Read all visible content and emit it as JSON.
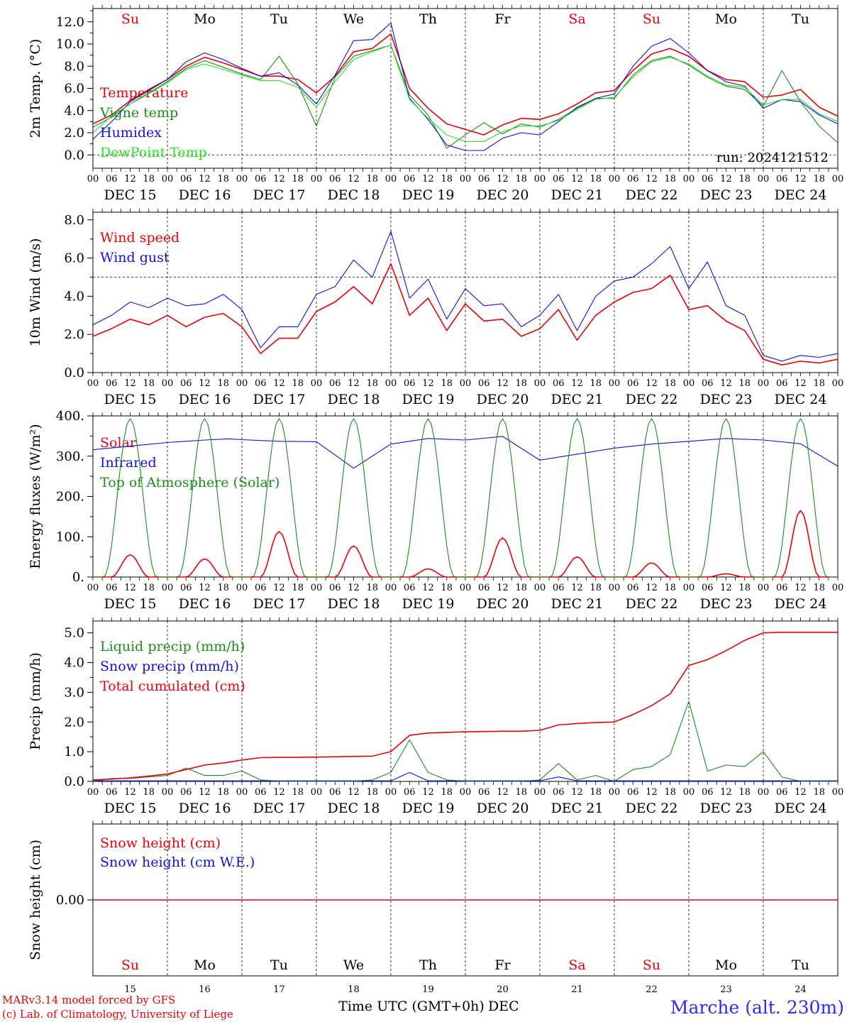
{
  "chart_data": [
    {
      "type": "line",
      "ylabel": "2m Temp. (°C)",
      "ylim": [
        -1.2,
        13.2
      ],
      "yticks": [
        0,
        2,
        4,
        6,
        8,
        10,
        12
      ],
      "ytick_labels": [
        "0.0",
        "2.0",
        "4.0",
        "6.0",
        "8.0",
        "10.0",
        "12.0"
      ],
      "reference_line": 0,
      "day_names": [
        "Su",
        "Mo",
        "Tu",
        "We",
        "Th",
        "Fr",
        "Sa",
        "Su",
        "Mo",
        "Tu"
      ],
      "run_label": "run: 2024121512",
      "x_hours": [
        0,
        6,
        12,
        18,
        24,
        30,
        36,
        42,
        48,
        54,
        60,
        66,
        72,
        78,
        84,
        90,
        96,
        102,
        108,
        114,
        120,
        126,
        132,
        138,
        144,
        150,
        156,
        162,
        168,
        174,
        180,
        186,
        192,
        198,
        204,
        210,
        216,
        222,
        228,
        234,
        240
      ],
      "series": [
        {
          "name": "Temperature",
          "color": "#e8000a",
          "values": [
            2.8,
            3.6,
            4.9,
            5.9,
            6.8,
            8.0,
            8.8,
            8.3,
            7.7,
            7.1,
            7.1,
            6.8,
            5.6,
            7.1,
            9.3,
            9.6,
            10.9,
            6.0,
            4.2,
            2.8,
            2.3,
            1.8,
            2.7,
            3.3,
            3.2,
            3.7,
            4.6,
            5.6,
            5.8,
            7.6,
            9.1,
            9.6,
            8.9,
            7.6,
            6.8,
            6.6,
            5.2,
            5.4,
            5.9,
            4.3,
            3.5
          ]
        },
        {
          "name": "Vigne temp",
          "color": "#1a8c1a",
          "values": [
            2.5,
            3.4,
            4.6,
            5.6,
            6.6,
            7.8,
            8.5,
            7.9,
            7.3,
            6.8,
            8.9,
            6.4,
            2.6,
            7.0,
            8.9,
            9.4,
            9.9,
            5.4,
            3.6,
            0.6,
            1.8,
            2.9,
            1.9,
            2.8,
            2.5,
            3.2,
            4.2,
            5.1,
            5.1,
            7.2,
            8.5,
            8.9,
            8.1,
            7.0,
            6.2,
            5.9,
            4.4,
            7.6,
            4.8,
            2.6,
            1.1
          ]
        },
        {
          "name": "Humidex",
          "color": "#1010e0",
          "values": [
            1.4,
            3.0,
            4.8,
            5.8,
            6.8,
            8.4,
            9.2,
            8.6,
            7.8,
            7.1,
            7.4,
            6.3,
            4.6,
            7.2,
            10.3,
            10.4,
            11.9,
            5.1,
            3.2,
            0.9,
            0.4,
            0.4,
            1.5,
            2.0,
            1.8,
            3.0,
            4.3,
            5.1,
            5.5,
            8.0,
            9.8,
            10.5,
            9.2,
            7.6,
            6.6,
            6.2,
            4.2,
            5.0,
            4.8,
            3.6,
            2.8
          ]
        },
        {
          "name": "DewPoint Temp",
          "color": "#22e422",
          "values": [
            2.0,
            3.5,
            4.6,
            5.5,
            6.5,
            7.7,
            8.2,
            7.7,
            7.2,
            6.7,
            6.7,
            6.1,
            4.3,
            6.6,
            8.6,
            9.3,
            9.9,
            5.0,
            3.3,
            1.8,
            1.2,
            1.2,
            2.1,
            2.6,
            2.6,
            3.1,
            4.1,
            5.0,
            5.2,
            7.0,
            8.4,
            8.8,
            8.2,
            7.1,
            6.3,
            6.1,
            4.5,
            5.0,
            5.0,
            3.7,
            3.0
          ]
        }
      ]
    },
    {
      "type": "line",
      "ylabel": "10m Wind (m/s)",
      "ylim": [
        0,
        8.4
      ],
      "yticks": [
        0,
        2,
        4,
        6,
        8
      ],
      "ytick_labels": [
        "0.0",
        "2.0",
        "4.0",
        "6.0",
        "8.0"
      ],
      "reference_line": 5,
      "x_hours": [
        0,
        6,
        12,
        18,
        24,
        30,
        36,
        42,
        48,
        54,
        60,
        66,
        72,
        78,
        84,
        90,
        96,
        102,
        108,
        114,
        120,
        126,
        132,
        138,
        144,
        150,
        156,
        162,
        168,
        174,
        180,
        186,
        192,
        198,
        204,
        210,
        216,
        222,
        228,
        234,
        240
      ],
      "series": [
        {
          "name": "Wind speed",
          "color": "#e8000a",
          "values": [
            1.9,
            2.3,
            2.8,
            2.5,
            3.0,
            2.4,
            2.9,
            3.1,
            2.4,
            1.0,
            1.8,
            1.8,
            3.2,
            3.7,
            4.5,
            3.6,
            5.7,
            3.0,
            3.9,
            2.2,
            3.6,
            2.7,
            2.8,
            1.9,
            2.3,
            3.3,
            1.7,
            3.0,
            3.7,
            4.2,
            4.4,
            5.1,
            3.3,
            3.5,
            2.7,
            2.2,
            0.7,
            0.4,
            0.6,
            0.5,
            0.7
          ]
        },
        {
          "name": "Wind gust",
          "color": "#1010e0",
          "values": [
            2.5,
            3.0,
            3.7,
            3.4,
            3.9,
            3.5,
            3.6,
            4.1,
            3.3,
            1.3,
            2.4,
            2.4,
            4.1,
            4.5,
            5.9,
            5.0,
            7.4,
            3.9,
            4.9,
            2.8,
            4.4,
            3.5,
            3.6,
            2.4,
            3.0,
            4.1,
            2.2,
            4.0,
            4.8,
            5.0,
            5.7,
            6.6,
            4.4,
            5.8,
            3.5,
            3.0,
            0.9,
            0.6,
            0.9,
            0.8,
            1.0
          ]
        }
      ]
    },
    {
      "type": "line",
      "ylabel": "Energy fluxes (W/m²)",
      "ylim": [
        0,
        400
      ],
      "yticks": [
        0,
        100,
        200,
        300,
        400
      ],
      "ytick_labels": [
        "0.",
        "100.",
        "200.",
        "300.",
        "400."
      ],
      "solar_peaks": [
        55,
        45,
        113,
        77,
        20,
        97,
        50,
        35,
        8,
        165
      ],
      "toa_peak": 393,
      "x_hours": [
        0,
        12,
        24,
        36,
        44,
        48,
        60,
        72,
        84,
        96,
        108,
        120,
        132,
        144,
        156,
        168,
        180,
        192,
        204,
        216,
        228,
        240
      ],
      "series": [
        {
          "name": "Solar",
          "color": "#e8000a"
        },
        {
          "name": "Infrared",
          "color": "#1010e0",
          "values": [
            316,
            325,
            334,
            340,
            343,
            341,
            337,
            336,
            270,
            330,
            344,
            340,
            349,
            290,
            305,
            320,
            330,
            337,
            344,
            340,
            331,
            275
          ]
        },
        {
          "name": "Top of Atmosphere (Solar)",
          "color": "#1a8c1a"
        }
      ]
    },
    {
      "type": "line",
      "ylabel": "Precip (mm/h)",
      "ylim": [
        0,
        5.4
      ],
      "yticks": [
        0,
        1,
        2,
        3,
        4,
        5
      ],
      "ytick_labels": [
        "0.0",
        "1.0",
        "2.0",
        "3.0",
        "4.0",
        "5.0"
      ],
      "x_hours": [
        0,
        6,
        12,
        18,
        24,
        30,
        36,
        42,
        48,
        54,
        60,
        66,
        72,
        78,
        84,
        90,
        96,
        102,
        108,
        114,
        120,
        126,
        132,
        138,
        144,
        150,
        156,
        162,
        168,
        174,
        180,
        186,
        192,
        198,
        204,
        210,
        216,
        222,
        228,
        234,
        240
      ],
      "series": [
        {
          "name": "Liquid precip (mm/h)",
          "color": "#1a8c1a",
          "values": [
            0.0,
            0.1,
            0.1,
            0.15,
            0.2,
            0.45,
            0.2,
            0.2,
            0.35,
            0.05,
            0.0,
            0.0,
            0.0,
            0.0,
            0.0,
            0.05,
            0.3,
            1.4,
            0.3,
            0.05,
            0.0,
            0.0,
            0.0,
            0.0,
            0.05,
            0.6,
            0.05,
            0.2,
            0.0,
            0.4,
            0.5,
            0.9,
            2.7,
            0.35,
            0.55,
            0.5,
            1.0,
            0.15,
            0.0,
            0.0,
            0.0
          ]
        },
        {
          "name": "Snow precip (mm/h)",
          "color": "#1010e0",
          "values": [
            0.02,
            0.02,
            0.02,
            0.02,
            0.02,
            0.02,
            0.02,
            0.02,
            0.02,
            0.02,
            0.02,
            0.02,
            0.02,
            0.02,
            0.02,
            0.02,
            0.02,
            0.3,
            0.02,
            0.02,
            0.02,
            0.02,
            0.02,
            0.02,
            0.02,
            0.15,
            0.02,
            0.02,
            0.02,
            0.02,
            0.02,
            0.02,
            0.02,
            0.02,
            0.02,
            0.02,
            0.02,
            0.02,
            0.02,
            0.02,
            0.02
          ]
        },
        {
          "name": "Total cumulated (cm)",
          "color": "#e8000a",
          "values": [
            0.05,
            0.08,
            0.12,
            0.18,
            0.25,
            0.4,
            0.55,
            0.62,
            0.72,
            0.8,
            0.81,
            0.81,
            0.82,
            0.83,
            0.84,
            0.85,
            1.0,
            1.55,
            1.63,
            1.65,
            1.67,
            1.68,
            1.69,
            1.69,
            1.72,
            1.9,
            1.95,
            1.98,
            2.0,
            2.25,
            2.55,
            2.95,
            3.9,
            4.1,
            4.4,
            4.75,
            5.0,
            5.02,
            5.02,
            5.02,
            5.02
          ]
        }
      ]
    },
    {
      "type": "line",
      "ylabel": "Snow height (cm)",
      "ylim": [
        -1,
        1
      ],
      "yticks": [
        0
      ],
      "ytick_labels": [
        "0.00"
      ],
      "x_hours": [
        0,
        240
      ],
      "series": [
        {
          "name": "Snow height (cm)",
          "color": "#e8000a",
          "values": [
            0,
            0
          ]
        },
        {
          "name": "Snow height (cm W.E.)",
          "color": "#1010e0"
        }
      ]
    }
  ],
  "x_axis": {
    "hour_labels": [
      "00",
      "06",
      "12",
      "18"
    ],
    "end_hour_label": "00",
    "dates": [
      "DEC 15",
      "DEC 16",
      "DEC 17",
      "DEC 18",
      "DEC 19",
      "DEC 20",
      "DEC 21",
      "DEC 22",
      "DEC 23",
      "DEC 24"
    ],
    "bottom_day_names": [
      "Su",
      "Mo",
      "Tu",
      "We",
      "Th",
      "Fr",
      "Sa",
      "Su",
      "Mo",
      "Tu"
    ],
    "bottom_day_numbers": [
      "15",
      "16",
      "17",
      "18",
      "19",
      "20",
      "21",
      "22",
      "23",
      "24"
    ],
    "weekend_color": "#e8000a",
    "weekday_color": "#000000",
    "weekend_indices": [
      0,
      6,
      7
    ],
    "title": "Time UTC (GMT+0h)",
    "month_label": "DEC"
  },
  "footer": {
    "credit_line1": "MARv3.14 model forced by GFS",
    "credit_line2": "(c) Lab. of Climatology, University of Liege",
    "station": "Marche (alt. 230m)",
    "credit_color": "#e8000a",
    "station_color": "#2a2aff"
  }
}
